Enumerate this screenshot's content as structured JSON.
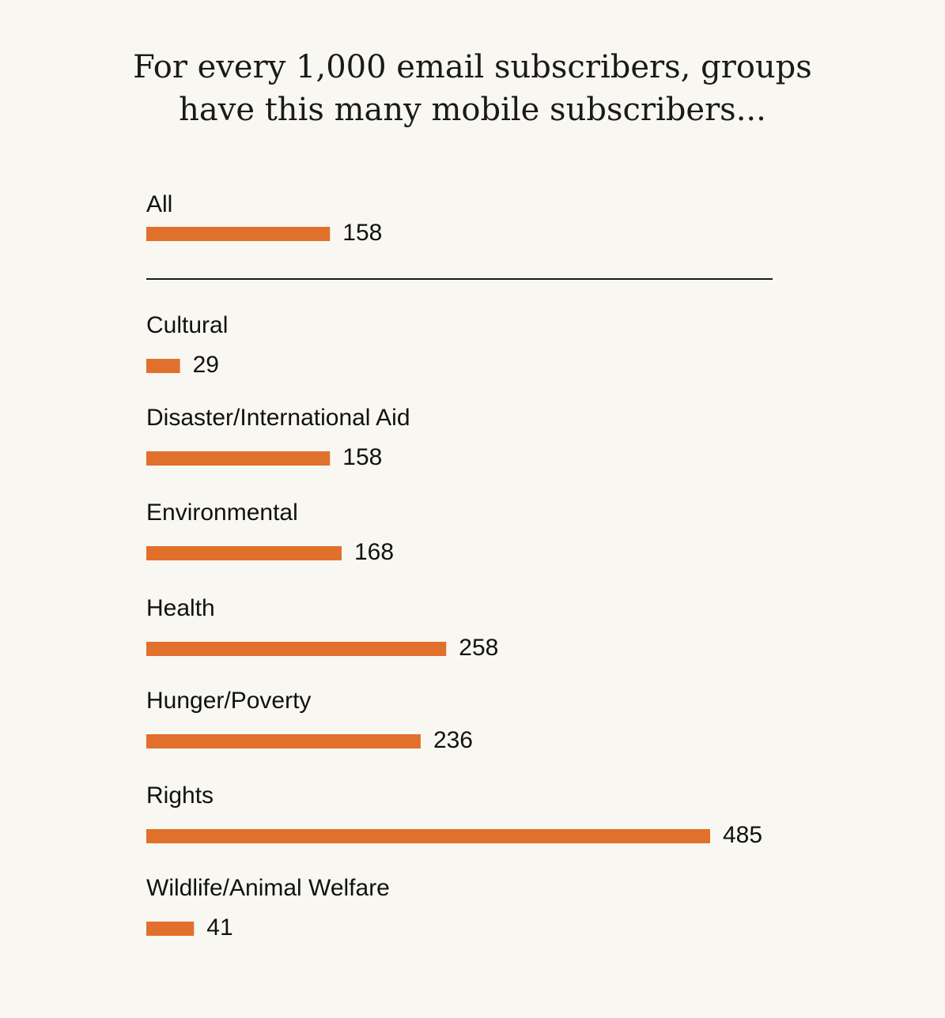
{
  "chart_data": {
    "type": "bar",
    "orientation": "horizontal",
    "title_lines": [
      "For every 1,000 email subscribers, groups",
      "have this many mobile subscribers..."
    ],
    "summary": {
      "category": "All",
      "value": 158
    },
    "categories": [
      "Cultural",
      "Disaster/International Aid",
      "Environmental",
      "Health",
      "Hunger/Poverty",
      "Rights",
      "Wildlife/Animal Welfare"
    ],
    "values": [
      29,
      158,
      168,
      258,
      236,
      485,
      41
    ],
    "xlim": [
      0,
      485
    ],
    "grid": false,
    "legend": "none",
    "bar_color": "#e2702d",
    "divider_color": "#1a1a1a"
  }
}
